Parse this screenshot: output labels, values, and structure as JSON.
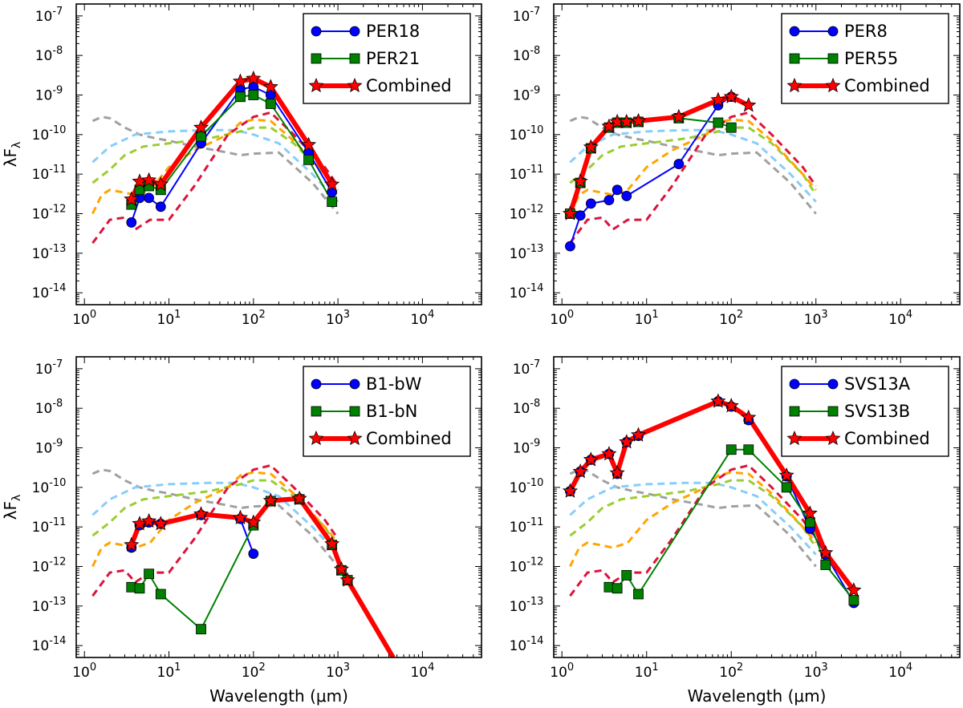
{
  "figure": {
    "ylabel": "λF",
    "ylabel_sub": "λ",
    "xlabel": "Wavelength (μm)"
  },
  "chart_data": [
    {
      "type": "line",
      "panel": "top-left",
      "xscale": "log",
      "yscale": "log",
      "xlim": [
        0.8,
        50000
      ],
      "ylim": [
        5e-15,
        2e-07
      ],
      "xticks": [
        {
          "base": "10",
          "exp": "0",
          "v": 1
        },
        {
          "base": "10",
          "exp": "1",
          "v": 10
        },
        {
          "base": "10",
          "exp": "2",
          "v": 100
        },
        {
          "base": "10",
          "exp": "3",
          "v": 1000
        },
        {
          "base": "10",
          "exp": "4",
          "v": 10000
        }
      ],
      "yticks": [
        {
          "base": "10",
          "exp": "-14",
          "v": 1e-14
        },
        {
          "base": "10",
          "exp": "-13",
          "v": 1e-13
        },
        {
          "base": "10",
          "exp": "-12",
          "v": 1e-12
        },
        {
          "base": "10",
          "exp": "-11",
          "v": 1e-11
        },
        {
          "base": "10",
          "exp": "-10",
          "v": 1e-10
        },
        {
          "base": "10",
          "exp": "-9",
          "v": 1e-09
        },
        {
          "base": "10",
          "exp": "-8",
          "v": 1e-08
        },
        {
          "base": "10",
          "exp": "-7",
          "v": 1e-07
        }
      ],
      "show_xlabel": false,
      "show_ylabel": true,
      "legend_loc": "top-right",
      "series": [
        {
          "name": "PER18",
          "role": "A",
          "color": "#0000ff",
          "marker": "circle",
          "x": [
            3.6,
            4.5,
            5.8,
            8,
            24,
            70,
            100,
            160,
            450,
            850
          ],
          "y": [
            6e-13,
            2.5e-12,
            2.5e-12,
            1.5e-12,
            6e-11,
            1.4e-09,
            1.6e-09,
            1e-09,
            3.5e-11,
            3.5e-12
          ]
        },
        {
          "name": "PER21",
          "role": "B",
          "color": "#008000",
          "marker": "square",
          "x": [
            3.6,
            4.5,
            5.8,
            8,
            24,
            70,
            100,
            160,
            450,
            850
          ],
          "y": [
            1.7e-12,
            4e-12,
            5e-12,
            4e-12,
            9e-11,
            9e-10,
            1e-09,
            6e-10,
            2.3e-11,
            2e-12
          ]
        },
        {
          "name": "Combined",
          "role": "C",
          "color": "#ff0000",
          "marker": "star",
          "x": [
            3.6,
            4.5,
            5.8,
            8,
            24,
            70,
            100,
            160,
            450,
            850
          ],
          "y": [
            2.3e-12,
            6.5e-12,
            7e-12,
            5.5e-12,
            1.5e-10,
            2.2e-09,
            2.6e-09,
            1.6e-09,
            5.5e-11,
            5.5e-12
          ]
        }
      ]
    },
    {
      "type": "line",
      "panel": "top-right",
      "xscale": "log",
      "yscale": "log",
      "xlim": [
        0.8,
        50000
      ],
      "ylim": [
        5e-15,
        2e-07
      ],
      "xticks": [
        {
          "base": "10",
          "exp": "0",
          "v": 1
        },
        {
          "base": "10",
          "exp": "1",
          "v": 10
        },
        {
          "base": "10",
          "exp": "2",
          "v": 100
        },
        {
          "base": "10",
          "exp": "3",
          "v": 1000
        },
        {
          "base": "10",
          "exp": "4",
          "v": 10000
        }
      ],
      "yticks": [
        {
          "base": "10",
          "exp": "-14",
          "v": 1e-14
        },
        {
          "base": "10",
          "exp": "-13",
          "v": 1e-13
        },
        {
          "base": "10",
          "exp": "-12",
          "v": 1e-12
        },
        {
          "base": "10",
          "exp": "-11",
          "v": 1e-11
        },
        {
          "base": "10",
          "exp": "-10",
          "v": 1e-10
        },
        {
          "base": "10",
          "exp": "-9",
          "v": 1e-09
        },
        {
          "base": "10",
          "exp": "-8",
          "v": 1e-08
        },
        {
          "base": "10",
          "exp": "-7",
          "v": 1e-07
        }
      ],
      "show_xlabel": false,
      "show_ylabel": false,
      "legend_loc": "top-right",
      "series": [
        {
          "name": "PER8",
          "role": "A",
          "color": "#0000ff",
          "marker": "circle",
          "x": [
            1.25,
            1.65,
            2.2,
            3.6,
            4.5,
            5.8,
            24,
            70,
            100
          ],
          "y": [
            1.5e-13,
            9e-13,
            1.8e-12,
            2.2e-12,
            4e-12,
            2.8e-12,
            1.8e-11,
            5.5e-10,
            9e-10
          ]
        },
        {
          "name": "PER55",
          "role": "B",
          "color": "#008000",
          "marker": "square",
          "x": [
            1.25,
            1.65,
            2.2,
            3.6,
            4.5,
            5.8,
            8,
            24,
            70,
            100
          ],
          "y": [
            1e-12,
            6e-12,
            4.5e-11,
            1.5e-10,
            2e-10,
            2e-10,
            2.1e-10,
            2.6e-10,
            2e-10,
            1.5e-10
          ]
        },
        {
          "name": "Combined",
          "role": "C",
          "color": "#ff0000",
          "marker": "star",
          "x": [
            1.25,
            1.65,
            2.2,
            3.6,
            4.5,
            5.8,
            8,
            24,
            70,
            100,
            160
          ],
          "y": [
            1e-12,
            6.5e-12,
            4.8e-11,
            1.6e-10,
            2.1e-10,
            2.1e-10,
            2.2e-10,
            2.8e-10,
            7.5e-10,
            9e-10,
            5.5e-10
          ]
        }
      ]
    },
    {
      "type": "line",
      "panel": "bottom-left",
      "xscale": "log",
      "yscale": "log",
      "xlim": [
        0.8,
        50000
      ],
      "ylim": [
        5e-15,
        2e-07
      ],
      "xticks": [
        {
          "base": "10",
          "exp": "0",
          "v": 1
        },
        {
          "base": "10",
          "exp": "1",
          "v": 10
        },
        {
          "base": "10",
          "exp": "2",
          "v": 100
        },
        {
          "base": "10",
          "exp": "3",
          "v": 1000
        },
        {
          "base": "10",
          "exp": "4",
          "v": 10000
        }
      ],
      "yticks": [
        {
          "base": "10",
          "exp": "-14",
          "v": 1e-14
        },
        {
          "base": "10",
          "exp": "-13",
          "v": 1e-13
        },
        {
          "base": "10",
          "exp": "-12",
          "v": 1e-12
        },
        {
          "base": "10",
          "exp": "-11",
          "v": 1e-11
        },
        {
          "base": "10",
          "exp": "-10",
          "v": 1e-10
        },
        {
          "base": "10",
          "exp": "-9",
          "v": 1e-09
        },
        {
          "base": "10",
          "exp": "-8",
          "v": 1e-08
        },
        {
          "base": "10",
          "exp": "-7",
          "v": 1e-07
        }
      ],
      "show_xlabel": true,
      "show_ylabel": true,
      "legend_loc": "top-right",
      "series": [
        {
          "name": "B1-bW",
          "role": "A",
          "color": "#0000ff",
          "marker": "circle",
          "x": [
            3.6,
            4.5,
            5.8,
            8,
            24,
            70,
            100
          ],
          "y": [
            3e-12,
            1.1e-11,
            1.3e-11,
            1.2e-11,
            2e-11,
            1.6e-11,
            2.1e-12
          ]
        },
        {
          "name": "B1-bN",
          "role": "B",
          "color": "#008000",
          "marker": "square",
          "x": [
            3.6,
            4.5,
            5.8,
            8,
            24,
            100,
            160,
            350,
            850,
            1100,
            1300
          ],
          "y": [
            3e-13,
            2.8e-13,
            6.5e-13,
            2e-13,
            2.6e-14,
            1.1e-11,
            4.5e-11,
            5e-11,
            3.5e-12,
            8e-13,
            4.5e-13
          ]
        },
        {
          "name": "Combined",
          "role": "C",
          "color": "#ff0000",
          "marker": "star",
          "x": [
            3.6,
            4.5,
            5.8,
            8,
            24,
            70,
            100,
            160,
            350,
            850,
            1100,
            1300
          ],
          "y": [
            3.5e-12,
            1.2e-11,
            1.4e-11,
            1.2e-11,
            2.1e-11,
            1.7e-11,
            1.3e-11,
            4.6e-11,
            5.2e-11,
            3.7e-12,
            8.5e-13,
            4.5e-13
          ],
          "extend_to": {
            "x": 4500,
            "y": 5e-15
          }
        }
      ]
    },
    {
      "type": "line",
      "panel": "bottom-right",
      "xscale": "log",
      "yscale": "log",
      "xlim": [
        0.8,
        50000
      ],
      "ylim": [
        5e-15,
        2e-07
      ],
      "xticks": [
        {
          "base": "10",
          "exp": "0",
          "v": 1
        },
        {
          "base": "10",
          "exp": "1",
          "v": 10
        },
        {
          "base": "10",
          "exp": "2",
          "v": 100
        },
        {
          "base": "10",
          "exp": "3",
          "v": 1000
        },
        {
          "base": "10",
          "exp": "4",
          "v": 10000
        }
      ],
      "yticks": [
        {
          "base": "10",
          "exp": "-14",
          "v": 1e-14
        },
        {
          "base": "10",
          "exp": "-13",
          "v": 1e-13
        },
        {
          "base": "10",
          "exp": "-12",
          "v": 1e-12
        },
        {
          "base": "10",
          "exp": "-11",
          "v": 1e-11
        },
        {
          "base": "10",
          "exp": "-10",
          "v": 1e-10
        },
        {
          "base": "10",
          "exp": "-9",
          "v": 1e-09
        },
        {
          "base": "10",
          "exp": "-8",
          "v": 1e-08
        },
        {
          "base": "10",
          "exp": "-7",
          "v": 1e-07
        }
      ],
      "show_xlabel": true,
      "show_ylabel": false,
      "legend_loc": "top-right",
      "series": [
        {
          "name": "SVS13A",
          "role": "A",
          "color": "#0000ff",
          "marker": "circle",
          "x": [
            1.25,
            1.65,
            2.2,
            3.6,
            4.5,
            5.8,
            8,
            70,
            100,
            160,
            450,
            850,
            1300,
            2800
          ],
          "y": [
            8e-11,
            2.5e-10,
            5e-10,
            7e-10,
            2.2e-10,
            1.4e-09,
            2e-09,
            1.5e-08,
            1.1e-08,
            5e-09,
            1.9e-10,
            9e-12,
            2e-12,
            1.2e-13
          ]
        },
        {
          "name": "SVS13B",
          "role": "B",
          "color": "#008000",
          "marker": "square",
          "x": [
            3.6,
            4.5,
            5.8,
            8,
            100,
            160,
            450,
            850,
            1300,
            2800
          ],
          "y": [
            3e-13,
            2.8e-13,
            6e-13,
            2e-13,
            9e-10,
            9e-10,
            1e-10,
            1.3e-11,
            1.1e-12,
            1.4e-13
          ]
        },
        {
          "name": "Combined",
          "role": "C",
          "color": "#ff0000",
          "marker": "star",
          "x": [
            1.25,
            1.65,
            2.2,
            3.6,
            4.5,
            5.8,
            8,
            70,
            100,
            160,
            450,
            850,
            1300,
            2800
          ],
          "y": [
            8e-11,
            2.5e-10,
            5e-10,
            7e-10,
            2.3e-10,
            1.4e-09,
            2.1e-09,
            1.5e-08,
            1.15e-08,
            5.8e-09,
            2e-10,
            2.2e-11,
            2.2e-12,
            2.5e-13
          ]
        }
      ]
    }
  ],
  "template_curves": [
    {
      "name": "template-gray",
      "color": "#a0a0a0",
      "x": [
        1.25,
        1.6,
        2,
        3,
        4.5,
        7,
        10,
        20,
        50,
        70,
        100,
        200,
        500,
        1000
      ],
      "y": [
        2.2e-10,
        2.8e-10,
        2.6e-10,
        1.5e-10,
        1e-10,
        8e-11,
        7e-11,
        5e-11,
        3.5e-11,
        3e-11,
        3.3e-11,
        3.5e-11,
        6e-12,
        1e-12
      ]
    },
    {
      "name": "template-lightblue",
      "color": "#87cefa",
      "x": [
        1.25,
        2,
        4,
        10,
        30,
        60,
        100,
        200,
        500,
        1000
      ],
      "y": [
        2e-11,
        5e-11,
        1e-10,
        1.2e-10,
        1.3e-10,
        1.3e-10,
        1e-10,
        6e-11,
        1e-11,
        2e-12
      ]
    },
    {
      "name": "template-yellowgreen",
      "color": "#9acd32",
      "x": [
        1.25,
        2,
        3,
        5,
        10,
        30,
        70,
        100,
        160,
        300,
        700,
        1000
      ],
      "y": [
        6e-12,
        1.3e-11,
        3e-11,
        5e-11,
        6e-11,
        8e-11,
        1.2e-10,
        1.5e-10,
        1.5e-10,
        6e-11,
        1e-11,
        3e-12
      ]
    },
    {
      "name": "template-orange",
      "color": "#ffa500",
      "x": [
        1.25,
        1.6,
        2,
        2.8,
        4,
        6,
        10,
        20,
        50,
        70,
        100,
        160,
        300,
        700,
        1000
      ],
      "y": [
        1e-12,
        3e-12,
        4e-12,
        3.5e-12,
        3e-12,
        4e-12,
        1.5e-11,
        4e-11,
        1e-10,
        2e-10,
        2.4e-10,
        2.2e-10,
        7e-11,
        1e-11,
        4e-12
      ]
    },
    {
      "name": "template-crimson",
      "color": "#dc143c",
      "x": [
        1.25,
        2,
        3,
        4,
        6,
        10,
        20,
        50,
        100,
        160,
        300,
        700,
        1000
      ],
      "y": [
        1.8e-13,
        7e-13,
        8e-13,
        4e-13,
        7e-13,
        7e-13,
        5e-12,
        1e-10,
        2.8e-10,
        3.6e-10,
        1e-10,
        1.5e-11,
        5e-12
      ]
    }
  ]
}
